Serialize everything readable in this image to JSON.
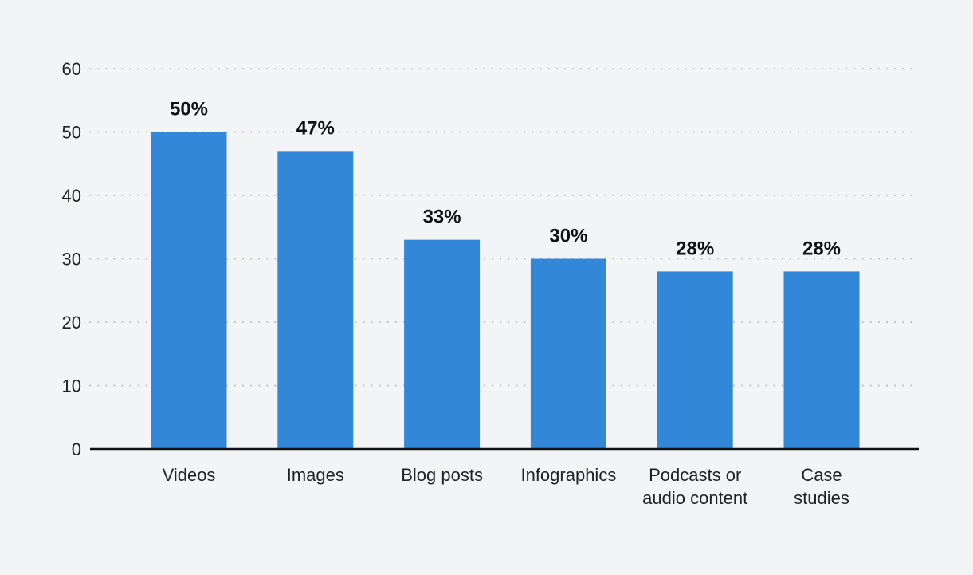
{
  "chart_data": {
    "type": "bar",
    "categories": [
      [
        "Videos"
      ],
      [
        "Images"
      ],
      [
        "Blog posts"
      ],
      [
        "Infographics"
      ],
      [
        "Podcasts or",
        "audio content"
      ],
      [
        "Case",
        "studies"
      ]
    ],
    "values": [
      50,
      47,
      33,
      30,
      28,
      28
    ],
    "data_labels": [
      "50%",
      "47%",
      "33%",
      "30%",
      "28%",
      "28%"
    ],
    "yticks": [
      "0",
      "10",
      "20",
      "30",
      "40",
      "50",
      "60"
    ],
    "ylim": [
      0,
      60
    ],
    "grid": true,
    "bar_color": "#3387d9",
    "title": "",
    "xlabel": "",
    "ylabel": ""
  }
}
